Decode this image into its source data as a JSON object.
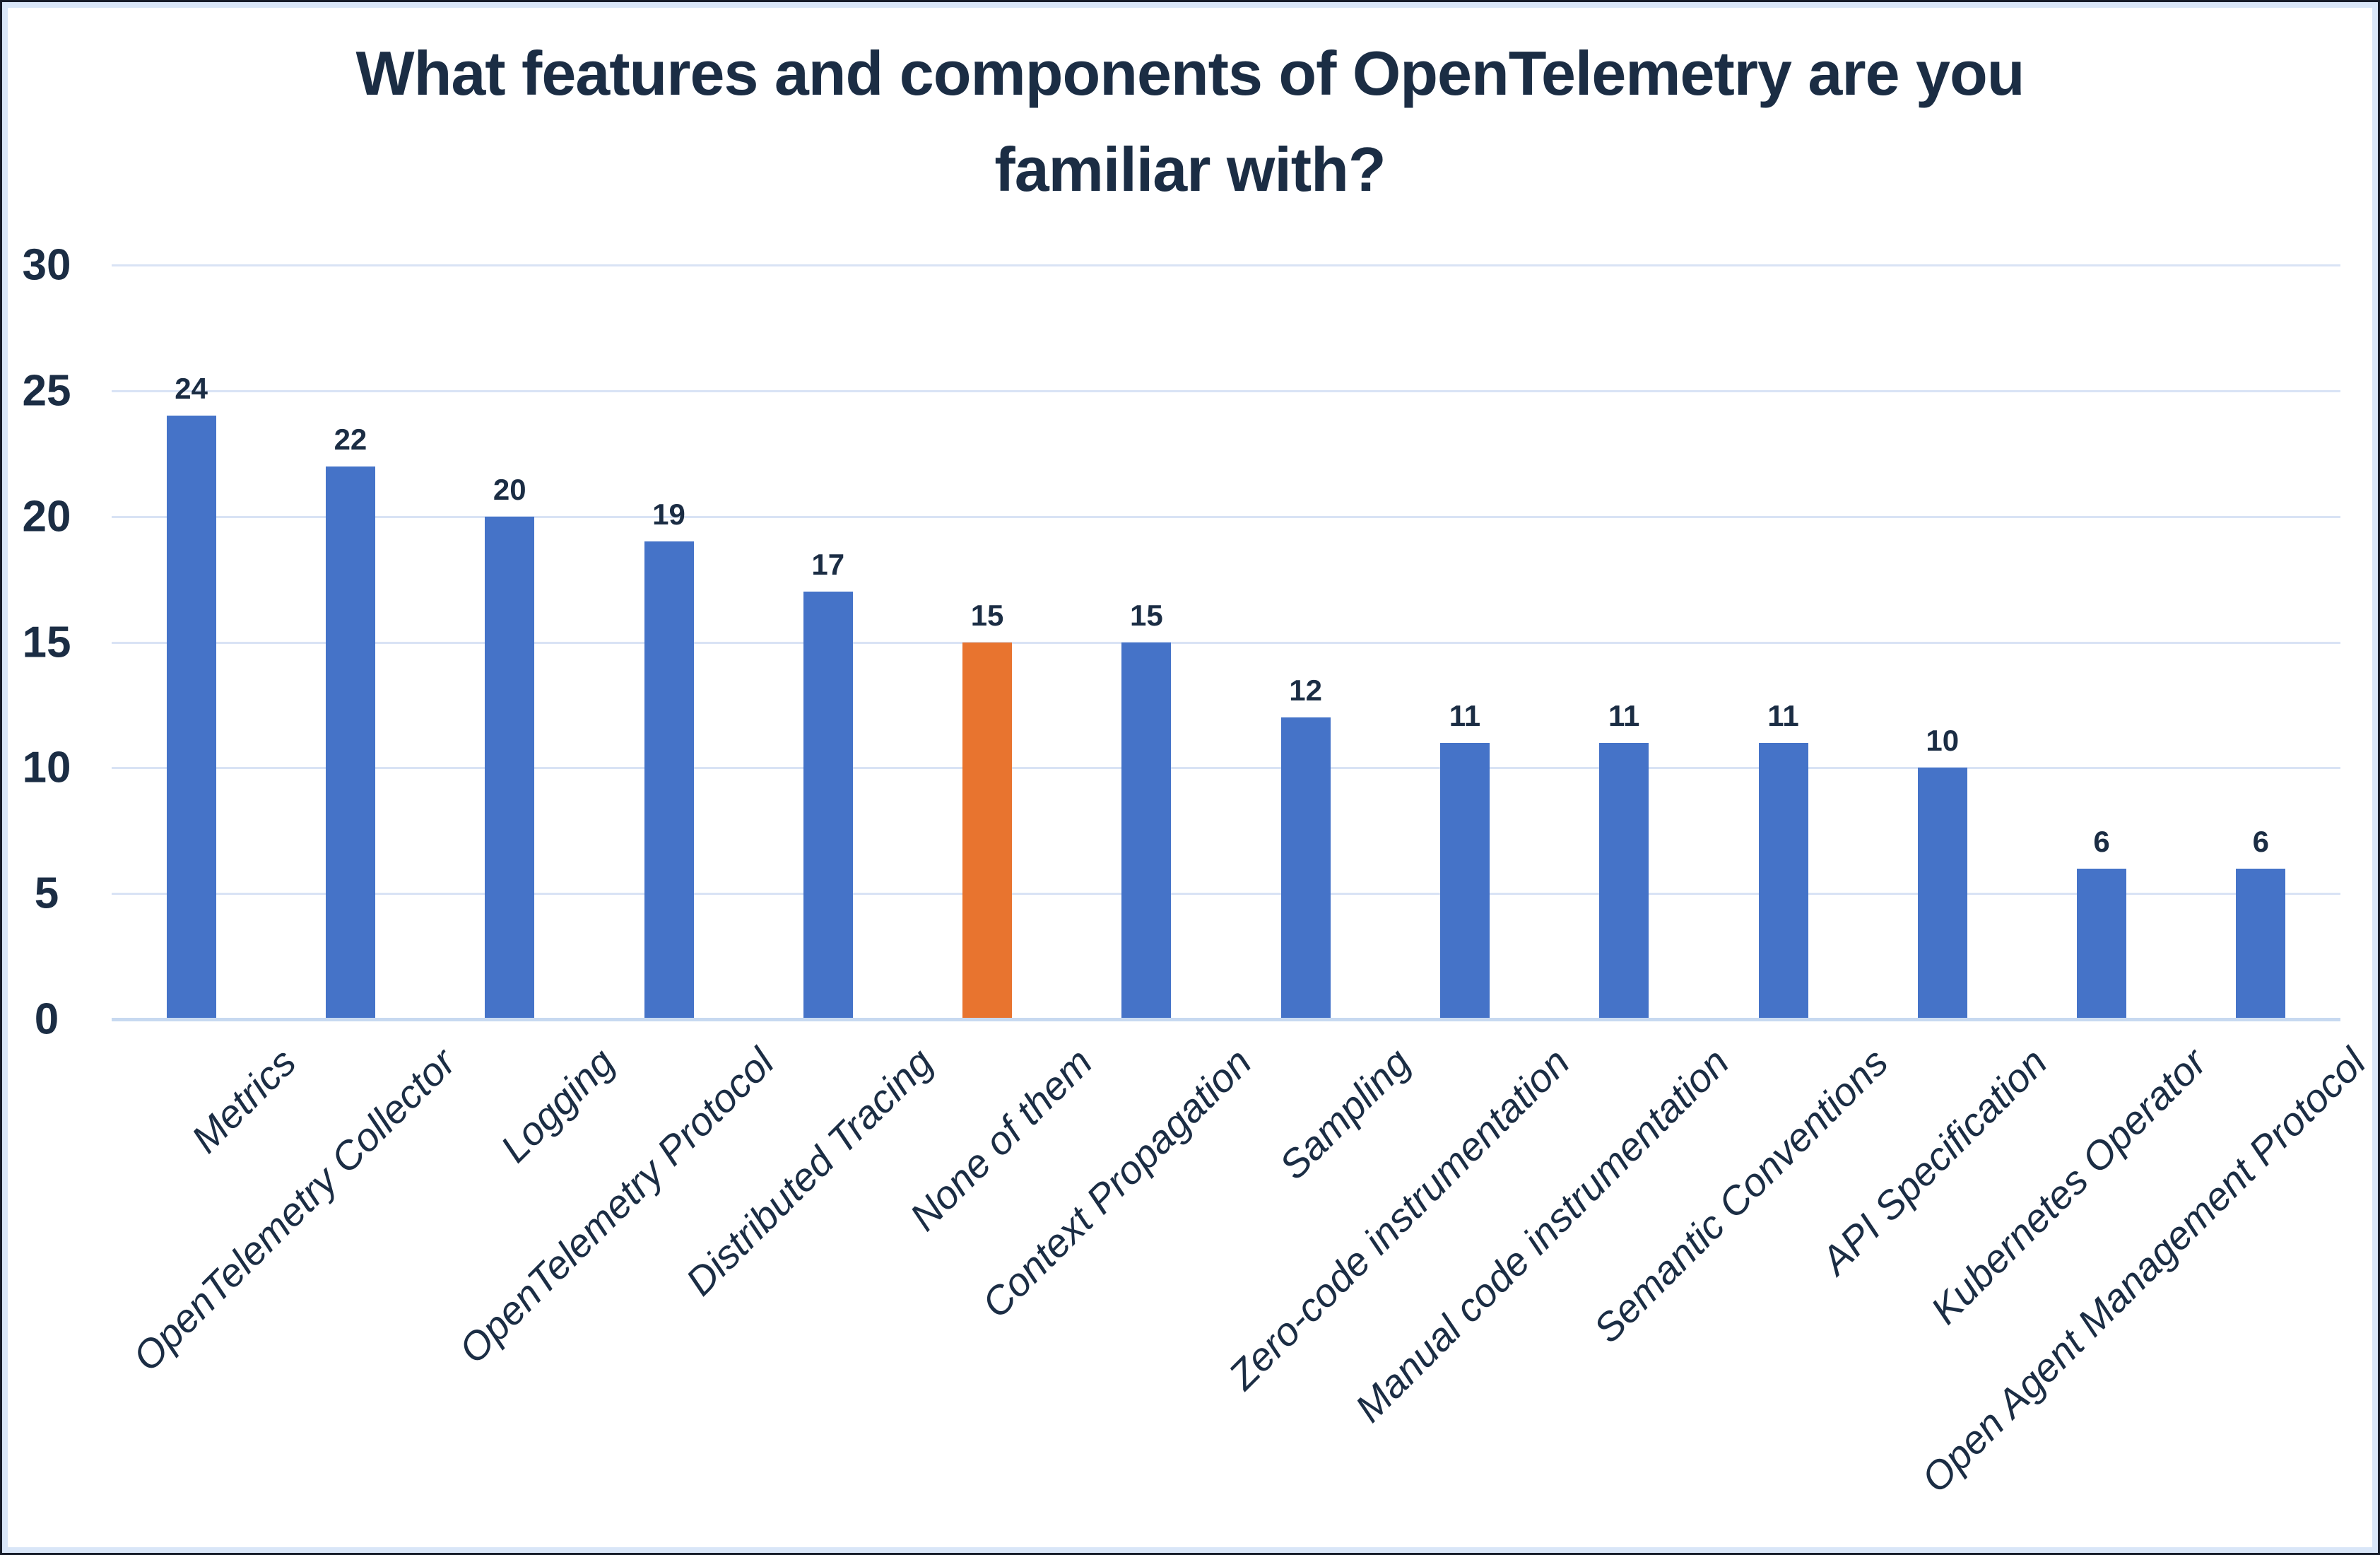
{
  "title": {
    "line1": "What features and components of OpenTelemetry are you",
    "line2": "familiar with?"
  },
  "chart_data": {
    "type": "bar",
    "title": "What features and components of OpenTelemetry are you familiar with?",
    "categories": [
      "Metrics",
      "OpenTelemetry Collector",
      "Logging",
      "OpenTelemetry Protocol",
      "Distributed Tracing",
      "None of them",
      "Context Propagation",
      "Sampling",
      "Zero-code instrumentation",
      "Manual code instrumentation",
      "Semantic Conventions",
      "API Specification",
      "Kubernetes Operator",
      "Open Agent Management Protocol"
    ],
    "values": [
      24,
      22,
      20,
      19,
      17,
      15,
      15,
      12,
      11,
      11,
      11,
      10,
      6,
      6
    ],
    "data_labels": [
      "24",
      "22",
      "20",
      "19",
      "17",
      "15",
      "15",
      "12",
      "11",
      "11",
      "11",
      "10",
      "6",
      "6"
    ],
    "highlight_category": "None of them",
    "highlight_index": 5,
    "xlabel": "",
    "ylabel": "",
    "ylim": [
      0,
      30
    ],
    "yticks": [
      0,
      5,
      10,
      15,
      20,
      25,
      30
    ],
    "grid": true,
    "legend_position": "none",
    "colors": {
      "bar": "#4573c8",
      "highlight_bar": "#e8742f",
      "text": "#1b2d44",
      "gridline": "#d9e3f5",
      "axis_line": "#c7d9f0",
      "frame_band": "#d9e6f8",
      "frame_edge": "#161c29",
      "background": "#ffffff"
    }
  }
}
